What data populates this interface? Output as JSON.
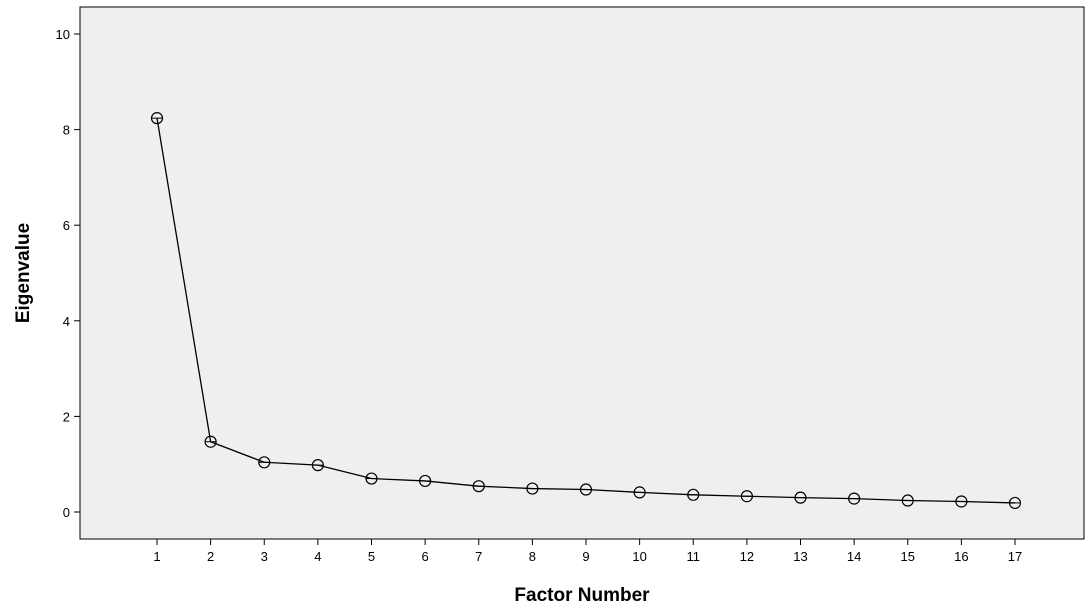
{
  "chart_data": {
    "type": "line",
    "title": "",
    "xlabel": "Factor Number",
    "ylabel": "Eigenvalue",
    "x": [
      1,
      2,
      3,
      4,
      5,
      6,
      7,
      8,
      9,
      10,
      11,
      12,
      13,
      14,
      15,
      16,
      17
    ],
    "series": [
      {
        "values": [
          8.24,
          1.47,
          1.04,
          0.98,
          0.7,
          0.65,
          0.54,
          0.49,
          0.47,
          0.41,
          0.36,
          0.33,
          0.3,
          0.28,
          0.24,
          0.22,
          0.19
        ],
        "marker": "open-circle",
        "color": "#000000"
      }
    ],
    "xlim": [
      0,
      18
    ],
    "ylim": [
      -0.5,
      10.5
    ],
    "yticks": [
      0,
      2,
      4,
      6,
      8,
      10
    ],
    "xticks": [
      1,
      2,
      3,
      4,
      5,
      6,
      7,
      8,
      9,
      10,
      11,
      12,
      13,
      14,
      15,
      16,
      17
    ],
    "grid": false,
    "legend": "none",
    "plot_background": "#efefef"
  }
}
